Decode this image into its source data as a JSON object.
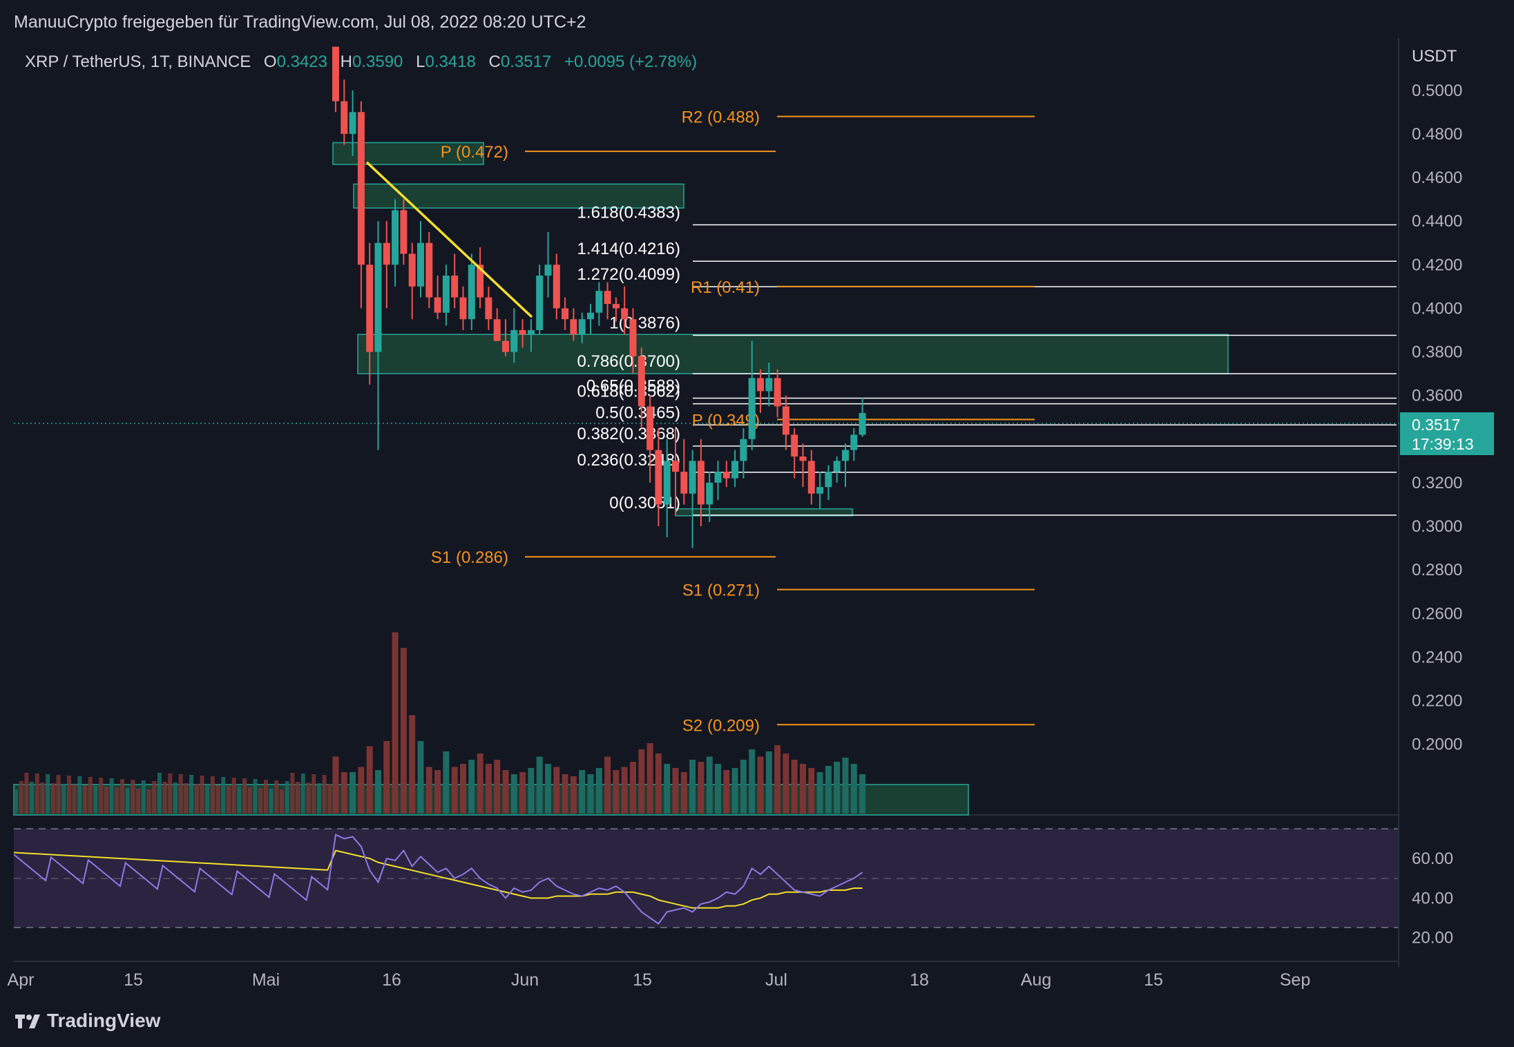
{
  "header": {
    "publisher": "ManuuCrypto freigegeben für TradingView.com, Jul 08, 2022 08:20 UTC+2"
  },
  "legend": {
    "symbol": "XRP / TetherUS, 1T, BINANCE",
    "o_label": "O",
    "o_value": "0.3423",
    "h_label": "H",
    "h_value": "0.3590",
    "l_label": "L",
    "l_value": "0.3418",
    "c_label": "C",
    "c_value": "0.3517",
    "change": "+0.0095 (+2.78%)"
  },
  "price_axis": {
    "unit": "USDT",
    "ticks": [
      "0.5000",
      "0.4800",
      "0.4600",
      "0.4400",
      "0.4200",
      "0.4000",
      "0.3800",
      "0.3600",
      "0.3400",
      "0.3200",
      "0.3000",
      "0.2800",
      "0.2600",
      "0.2400",
      "0.2200",
      "0.2000"
    ],
    "last_price": "0.3517",
    "countdown": "17:39:13"
  },
  "rsi_axis": {
    "ticks": [
      "60.00",
      "40.00",
      "20.00"
    ]
  },
  "time_axis": {
    "ticks": [
      "Apr",
      "15",
      "Mai",
      "16",
      "Jun",
      "15",
      "Jul",
      "18",
      "Aug",
      "15",
      "Sep"
    ]
  },
  "footer": {
    "brand": "TradingView"
  },
  "colors": {
    "background": "#131722",
    "up": "#26a69a",
    "down": "#ef5350",
    "vol_up": "#1e6b63",
    "vol_down": "#7a3434",
    "pivot": "#f7931a",
    "fib": "#ffffff",
    "zone": "#1e4d3a",
    "zone_border": "#26a69a",
    "trend": "#f5e02a",
    "rsi": "#8f7ae6",
    "rsi_ma": "#f5e02a",
    "rsi_band": "#2a2440"
  },
  "chart_data": {
    "type": "candlestick",
    "title": "",
    "ylabel": "USDT",
    "ylim": [
      0.185,
      0.505
    ],
    "rsi_ylim": [
      15,
      75
    ],
    "candles_ohlc": [
      [
        0.52,
        0.535,
        0.49,
        0.495
      ],
      [
        0.495,
        0.51,
        0.475,
        0.48
      ],
      [
        0.48,
        0.5,
        0.47,
        0.49
      ],
      [
        0.49,
        0.495,
        0.4,
        0.42
      ],
      [
        0.42,
        0.43,
        0.365,
        0.38
      ],
      [
        0.38,
        0.44,
        0.335,
        0.43
      ],
      [
        0.43,
        0.44,
        0.4,
        0.42
      ],
      [
        0.42,
        0.45,
        0.41,
        0.445
      ],
      [
        0.445,
        0.45,
        0.42,
        0.425
      ],
      [
        0.425,
        0.43,
        0.395,
        0.41
      ],
      [
        0.41,
        0.44,
        0.405,
        0.43
      ],
      [
        0.43,
        0.435,
        0.4,
        0.405
      ],
      [
        0.405,
        0.415,
        0.395,
        0.398
      ],
      [
        0.398,
        0.42,
        0.392,
        0.415
      ],
      [
        0.415,
        0.425,
        0.4,
        0.405
      ],
      [
        0.405,
        0.41,
        0.39,
        0.395
      ],
      [
        0.395,
        0.425,
        0.39,
        0.42
      ],
      [
        0.42,
        0.428,
        0.4,
        0.405
      ],
      [
        0.405,
        0.41,
        0.39,
        0.395
      ],
      [
        0.395,
        0.4,
        0.385,
        0.385
      ],
      [
        0.385,
        0.395,
        0.378,
        0.38
      ],
      [
        0.38,
        0.4,
        0.375,
        0.39
      ],
      [
        0.39,
        0.395,
        0.382,
        0.388
      ],
      [
        0.388,
        0.395,
        0.38,
        0.39
      ],
      [
        0.39,
        0.42,
        0.388,
        0.415
      ],
      [
        0.415,
        0.435,
        0.405,
        0.42
      ],
      [
        0.42,
        0.425,
        0.395,
        0.4
      ],
      [
        0.4,
        0.405,
        0.39,
        0.395
      ],
      [
        0.395,
        0.4,
        0.385,
        0.388
      ],
      [
        0.388,
        0.398,
        0.384,
        0.395
      ],
      [
        0.395,
        0.402,
        0.388,
        0.398
      ],
      [
        0.398,
        0.412,
        0.392,
        0.408
      ],
      [
        0.408,
        0.412,
        0.395,
        0.402
      ],
      [
        0.402,
        0.405,
        0.394,
        0.4
      ],
      [
        0.4,
        0.41,
        0.388,
        0.395
      ],
      [
        0.395,
        0.4,
        0.37,
        0.378
      ],
      [
        0.378,
        0.382,
        0.345,
        0.355
      ],
      [
        0.355,
        0.36,
        0.32,
        0.335
      ],
      [
        0.335,
        0.345,
        0.3,
        0.31
      ],
      [
        0.31,
        0.34,
        0.295,
        0.33
      ],
      [
        0.33,
        0.345,
        0.305,
        0.325
      ],
      [
        0.325,
        0.34,
        0.31,
        0.315
      ],
      [
        0.315,
        0.335,
        0.29,
        0.33
      ],
      [
        0.33,
        0.34,
        0.3,
        0.31
      ],
      [
        0.31,
        0.325,
        0.302,
        0.32
      ],
      [
        0.32,
        0.33,
        0.312,
        0.325
      ],
      [
        0.325,
        0.33,
        0.318,
        0.322
      ],
      [
        0.322,
        0.335,
        0.318,
        0.33
      ],
      [
        0.33,
        0.345,
        0.322,
        0.34
      ],
      [
        0.34,
        0.385,
        0.335,
        0.368
      ],
      [
        0.368,
        0.372,
        0.352,
        0.362
      ],
      [
        0.362,
        0.375,
        0.355,
        0.368
      ],
      [
        0.368,
        0.372,
        0.35,
        0.355
      ],
      [
        0.355,
        0.36,
        0.335,
        0.342
      ],
      [
        0.342,
        0.345,
        0.322,
        0.332
      ],
      [
        0.332,
        0.338,
        0.318,
        0.33
      ],
      [
        0.33,
        0.335,
        0.31,
        0.315
      ],
      [
        0.315,
        0.325,
        0.308,
        0.318
      ],
      [
        0.318,
        0.328,
        0.312,
        0.325
      ],
      [
        0.325,
        0.332,
        0.32,
        0.33
      ],
      [
        0.33,
        0.338,
        0.318,
        0.335
      ],
      [
        0.335,
        0.345,
        0.33,
        0.342
      ],
      [
        0.342,
        0.359,
        0.341,
        0.352
      ]
    ],
    "volumes": [
      55,
      40,
      40,
      45,
      65,
      42,
      70,
      175,
      160,
      95,
      70,
      45,
      42,
      60,
      45,
      48,
      52,
      58,
      48,
      52,
      42,
      38,
      40,
      44,
      55,
      48,
      45,
      38,
      36,
      42,
      38,
      44,
      55,
      42,
      45,
      50,
      62,
      68,
      58,
      48,
      44,
      40,
      52,
      50,
      55,
      48,
      42,
      44,
      52,
      62,
      55,
      60,
      66,
      58,
      52,
      48,
      44,
      40,
      46,
      50,
      54,
      48,
      38
    ],
    "vol_up": [
      false,
      false,
      true,
      false,
      false,
      true,
      false,
      false,
      false,
      false,
      true,
      false,
      false,
      true,
      false,
      false,
      true,
      false,
      false,
      false,
      false,
      true,
      false,
      true,
      true,
      true,
      false,
      false,
      false,
      true,
      true,
      true,
      false,
      false,
      false,
      false,
      false,
      false,
      false,
      true,
      false,
      false,
      true,
      false,
      true,
      true,
      false,
      true,
      true,
      true,
      false,
      true,
      false,
      false,
      false,
      false,
      false,
      true,
      true,
      true,
      true,
      true,
      true
    ],
    "rsi": [
      72,
      70,
      71,
      66,
      54,
      48,
      60,
      59,
      64,
      56,
      61,
      57,
      53,
      55,
      50,
      52,
      55,
      50,
      47,
      45,
      40,
      45,
      43,
      44,
      48,
      50,
      46,
      44,
      42,
      41,
      43,
      45,
      44,
      46,
      43,
      38,
      33,
      30,
      27,
      33,
      34,
      35,
      33,
      37,
      38,
      40,
      43,
      42,
      46,
      55,
      52,
      56,
      52,
      48,
      44,
      43,
      42,
      41,
      44,
      46,
      48,
      50,
      53
    ],
    "rsi_ma": [
      64,
      63,
      62,
      61,
      60,
      58,
      57,
      56,
      55,
      54,
      53,
      52,
      51,
      50,
      49,
      48,
      47,
      46,
      45,
      44,
      43,
      42,
      41,
      40,
      40,
      40,
      41,
      41,
      41,
      41,
      42,
      42,
      42,
      43,
      43,
      43,
      42,
      41,
      39,
      38,
      37,
      36,
      35,
      35,
      35,
      35,
      36,
      36,
      37,
      39,
      40,
      42,
      42,
      43,
      43,
      43,
      43,
      43,
      44,
      44,
      44,
      45,
      45
    ],
    "fib_levels": [
      {
        "label": "1.618(0.4383)",
        "value": 0.4383
      },
      {
        "label": "1.414(0.4216)",
        "value": 0.4216
      },
      {
        "label": "1.272(0.4099)",
        "value": 0.4099
      },
      {
        "label": "1(0.3876)",
        "value": 0.3876
      },
      {
        "label": "0.786(0.3700)",
        "value": 0.37
      },
      {
        "label": "0.65(0.3588)",
        "value": 0.3588
      },
      {
        "label": "0.618(0.3562)",
        "value": 0.3562
      },
      {
        "label": "0.5(0.3465)",
        "value": 0.3465
      },
      {
        "label": "0.382(0.3368)",
        "value": 0.3368
      },
      {
        "label": "0.236(0.3248)",
        "value": 0.3248
      },
      {
        "label": "0(0.3051)",
        "value": 0.3051
      }
    ],
    "pivots_may": [
      {
        "label": "P (0.472)",
        "value": 0.472
      },
      {
        "label": "S1 (0.286)",
        "value": 0.286
      }
    ],
    "pivots_jun": [
      {
        "label": "R2 (0.488)",
        "value": 0.488
      },
      {
        "label": "R1 (0.41)",
        "value": 0.41
      },
      {
        "label": "P (0.349)",
        "value": 0.349
      },
      {
        "label": "S1 (0.271)",
        "value": 0.271
      },
      {
        "label": "S2 (0.209)",
        "value": 0.209
      }
    ],
    "zones": [
      {
        "from": 0.466,
        "to": 0.476
      },
      {
        "from": 0.446,
        "to": 0.457
      },
      {
        "from": 0.37,
        "to": 0.388
      },
      {
        "from": 0.306,
        "to": 0.308
      }
    ],
    "trendline": {
      "from": 0.467,
      "to": 0.396
    }
  }
}
